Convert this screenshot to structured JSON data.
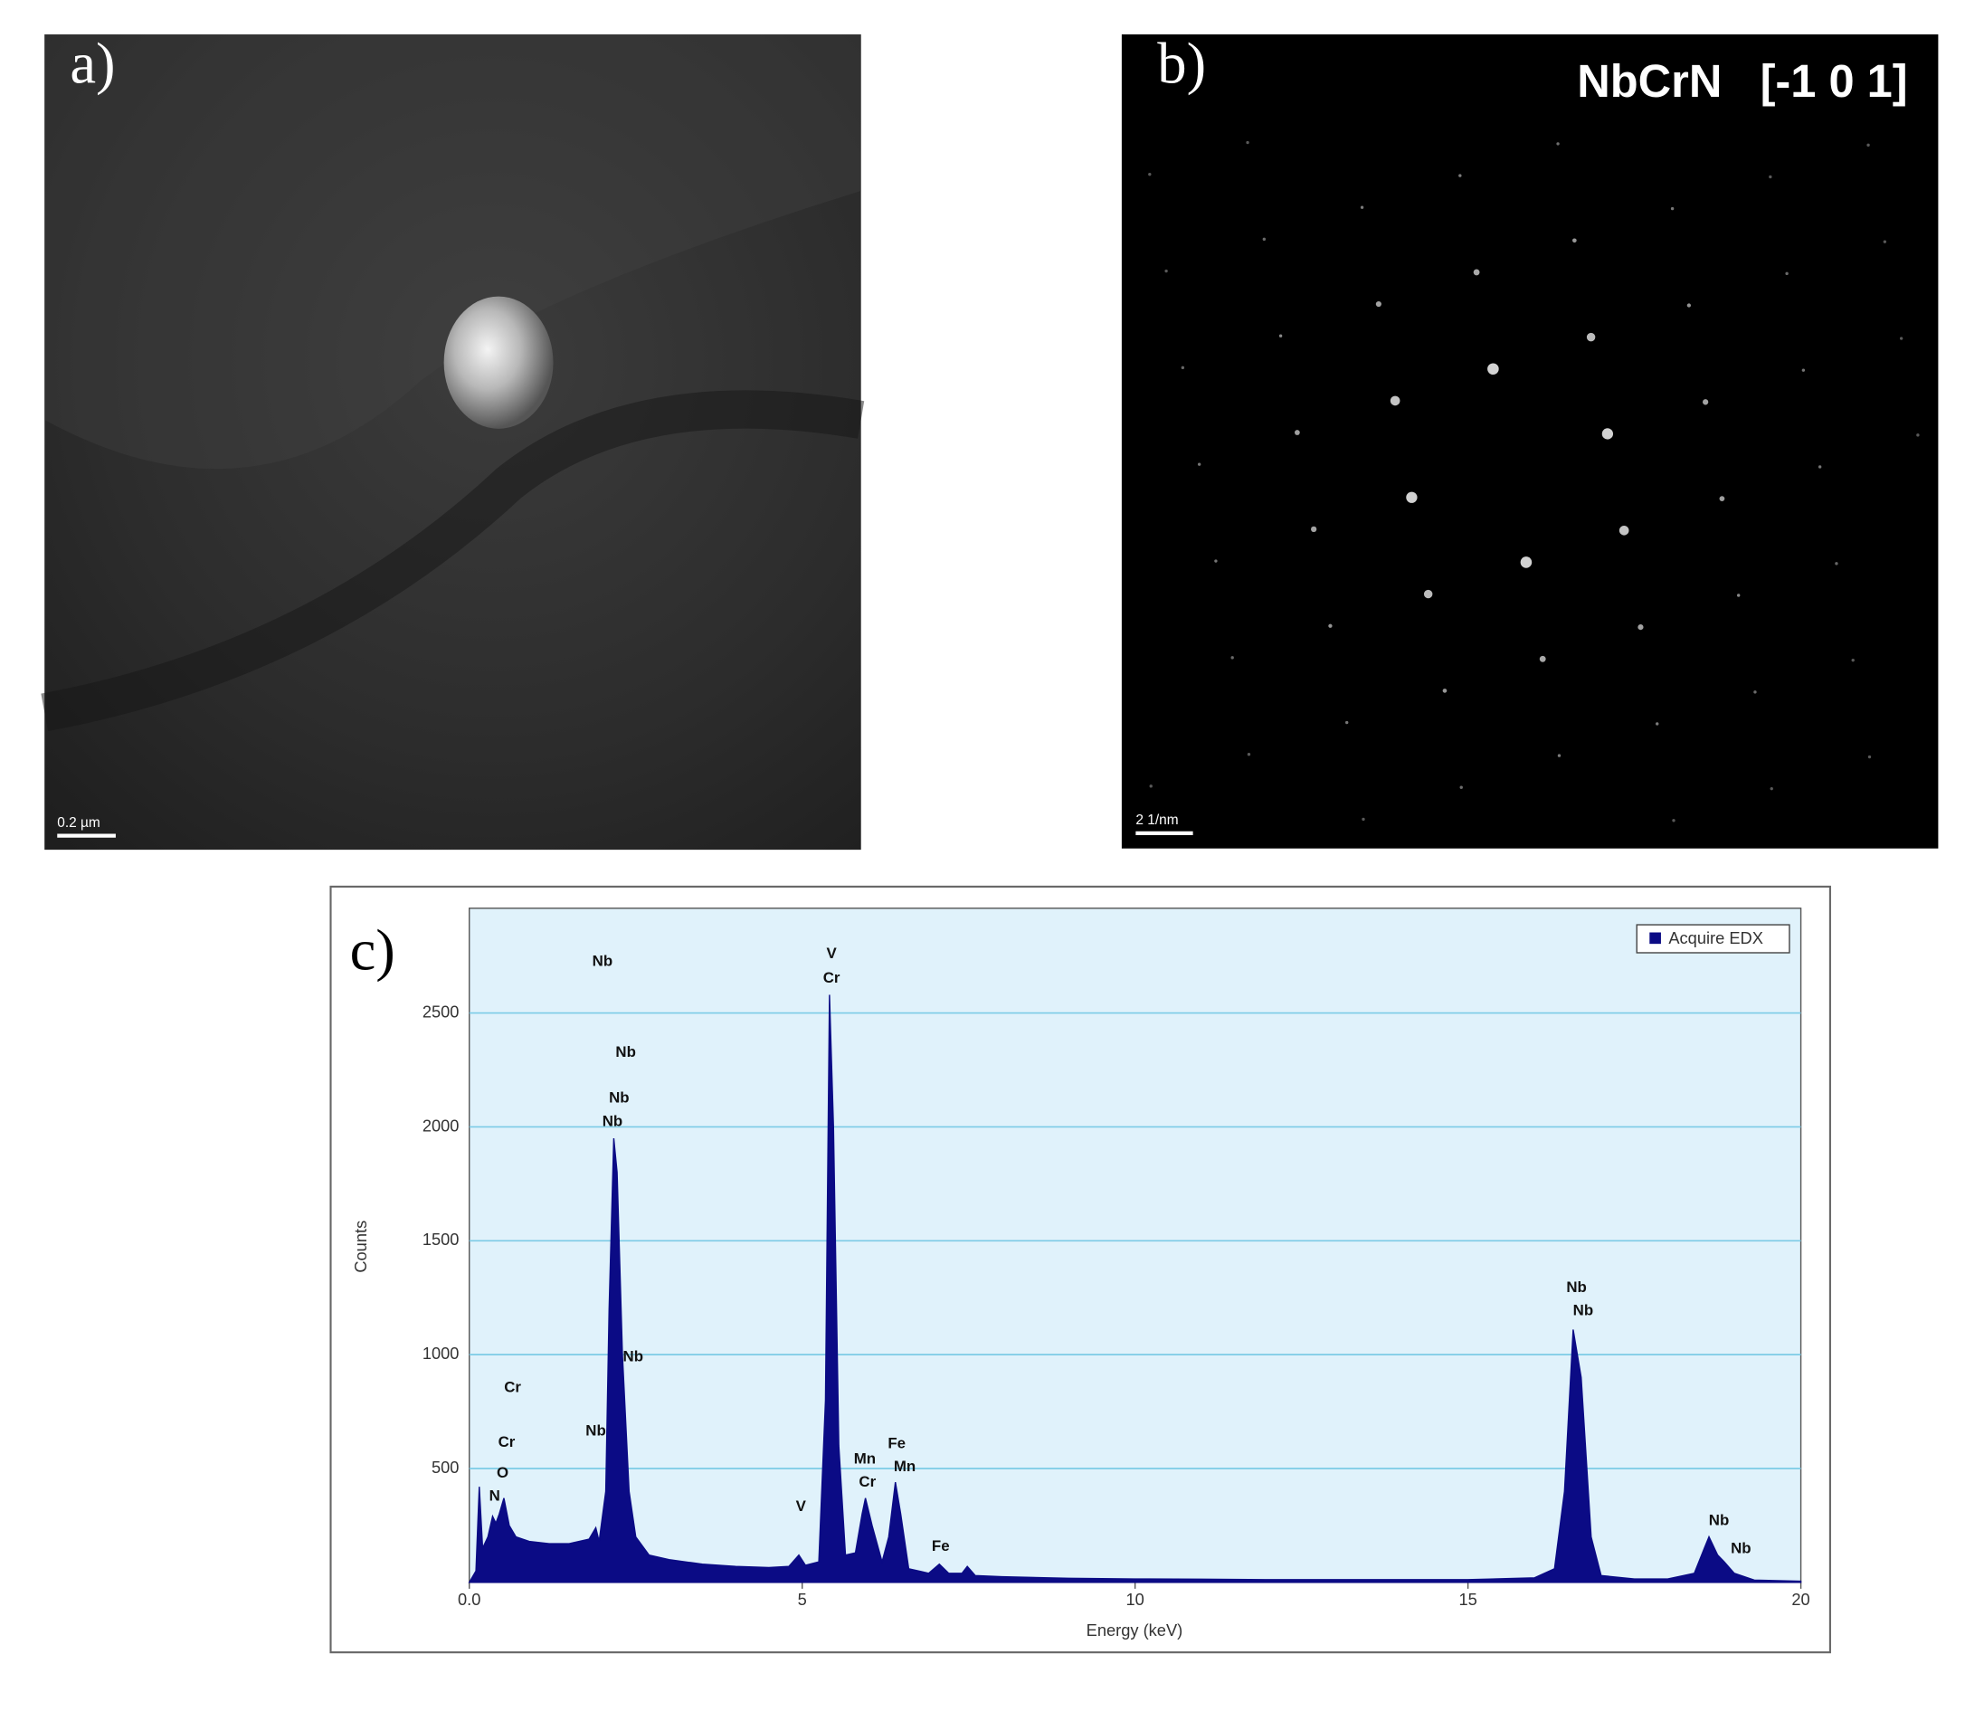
{
  "panels": {
    "a": {
      "label": "a)",
      "scale_bar": "0.2 µm"
    },
    "b": {
      "label": "b)",
      "title": "NbCrN   [-1 0 1]",
      "scale_bar": "2 1/nm"
    },
    "c": {
      "label": "c)"
    }
  },
  "chart_data": {
    "type": "area",
    "xlabel": "Energy (keV)",
    "ylabel": "Counts",
    "xlim": [
      0,
      20
    ],
    "xticks": [
      {
        "value": 0,
        "label": "0.0"
      },
      5,
      10,
      15,
      20
    ],
    "ylim": [
      0,
      2960
    ],
    "yticks": [
      500,
      1000,
      1500,
      2000,
      2500
    ],
    "grid": true,
    "legend": "upper right",
    "x": [
      0.0,
      0.1,
      0.15,
      0.2,
      0.28,
      0.35,
      0.4,
      0.45,
      0.52,
      0.6,
      0.7,
      0.9,
      1.2,
      1.5,
      1.8,
      1.9,
      1.95,
      2.05,
      2.1,
      2.17,
      2.22,
      2.3,
      2.4,
      2.5,
      2.7,
      3.0,
      3.5,
      4.0,
      4.5,
      4.8,
      4.95,
      5.05,
      5.25,
      5.35,
      5.41,
      5.47,
      5.55,
      5.65,
      5.8,
      5.9,
      5.95,
      6.05,
      6.2,
      6.3,
      6.4,
      6.48,
      6.6,
      6.9,
      7.06,
      7.2,
      7.4,
      7.48,
      7.6,
      8,
      9,
      10,
      11,
      12,
      13,
      14,
      15,
      16,
      16.3,
      16.45,
      16.58,
      16.7,
      16.85,
      17,
      17.5,
      18,
      18.4,
      18.55,
      18.62,
      18.75,
      18.85,
      19,
      19.3,
      20
    ],
    "series": [
      {
        "name": "Acquire EDX",
        "color": "#0b0b85",
        "values": [
          0,
          50,
          420,
          150,
          200,
          290,
          260,
          300,
          370,
          250,
          200,
          180,
          170,
          170,
          190,
          240,
          180,
          400,
          1200,
          1950,
          1800,
          1000,
          400,
          200,
          120,
          100,
          80,
          70,
          65,
          70,
          120,
          75,
          90,
          800,
          2580,
          2000,
          600,
          120,
          130,
          300,
          370,
          250,
          90,
          200,
          440,
          300,
          60,
          40,
          80,
          40,
          40,
          70,
          30,
          25,
          18,
          15,
          14,
          12,
          12,
          12,
          12,
          20,
          60,
          400,
          1110,
          900,
          200,
          30,
          15,
          15,
          40,
          150,
          200,
          120,
          90,
          40,
          10,
          5
        ]
      }
    ],
    "annotations": [
      {
        "text": "Nb",
        "x": 2.0,
        "y": 2725
      },
      {
        "text": "Nb",
        "x": 2.35,
        "y": 2326
      },
      {
        "text": "Nb",
        "x": 2.25,
        "y": 2124
      },
      {
        "text": "Nb",
        "x": 2.15,
        "y": 2022
      },
      {
        "text": "Nb",
        "x": 2.46,
        "y": 989
      },
      {
        "text": "Cr",
        "x": 0.65,
        "y": 854
      },
      {
        "text": "Cr",
        "x": 0.56,
        "y": 612
      },
      {
        "text": "O",
        "x": 0.5,
        "y": 478
      },
      {
        "text": "N",
        "x": 0.38,
        "y": 376
      },
      {
        "text": "Nb",
        "x": 1.9,
        "y": 663
      },
      {
        "text": "V",
        "x": 5.44,
        "y": 2758
      },
      {
        "text": "Cr",
        "x": 5.44,
        "y": 2652
      },
      {
        "text": "Mn",
        "x": 5.94,
        "y": 539
      },
      {
        "text": "Cr",
        "x": 5.98,
        "y": 438
      },
      {
        "text": "Fe",
        "x": 6.42,
        "y": 607
      },
      {
        "text": "Mn",
        "x": 6.54,
        "y": 506
      },
      {
        "text": "V",
        "x": 4.98,
        "y": 331
      },
      {
        "text": "Fe",
        "x": 7.08,
        "y": 157
      },
      {
        "text": "Nb",
        "x": 16.63,
        "y": 1292
      },
      {
        "text": "Nb",
        "x": 16.73,
        "y": 1191
      },
      {
        "text": "Nb",
        "x": 18.77,
        "y": 270
      },
      {
        "text": "Nb",
        "x": 19.1,
        "y": 146
      }
    ]
  }
}
